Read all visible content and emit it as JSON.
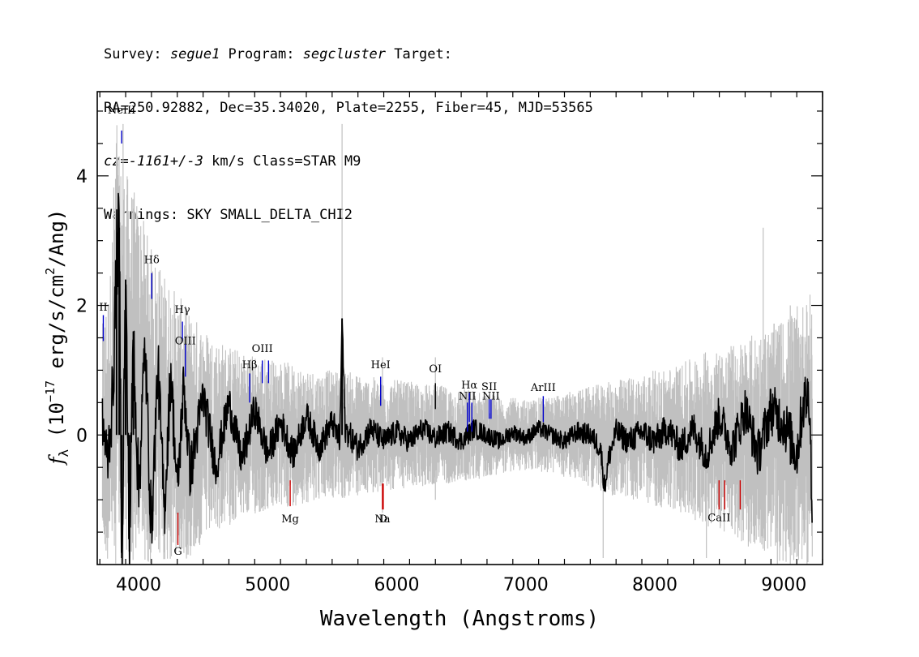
{
  "header": {
    "line1": {
      "survey_label": "Survey: ",
      "survey": "segue1",
      "program_label": " Program: ",
      "program": "segcluster",
      "target_label": " Target:"
    },
    "line2": "RA=250.92882, Dec=35.34020, Plate=2255, Fiber=45, MJD=53565",
    "line3": {
      "cz_label": "cz=",
      "cz_value": "-1161+/-3",
      "cz_rest": " km/s Class=STAR M9"
    },
    "line4": "Warnings: SKY SMALL_DELTA_CHI2"
  },
  "chart_data": {
    "type": "line",
    "title": "",
    "xlabel": "Wavelength (Angstroms)",
    "ylabel": "f_λ (10^-17 erg/s/cm^2/Ang)",
    "xlim": [
      3680,
      9300
    ],
    "ylim": [
      -2.0,
      5.3
    ],
    "x_ticks": [
      4000,
      5000,
      6000,
      7000,
      8000,
      9000
    ],
    "x_tick_labels": [
      "4000",
      "5000",
      "6000",
      "7000",
      "8000",
      "9000"
    ],
    "y_ticks": [
      0,
      2,
      4
    ],
    "y_tick_labels": [
      "0",
      "2",
      "4"
    ],
    "grid": false,
    "series": [
      {
        "name": "",
        "role": "flux-error-envelope",
        "color": "#c0c0c0",
        "x": [
          3720,
          3780,
          3830,
          3850,
          3900,
          4000,
          4100,
          4200,
          4300,
          4400,
          4500,
          4600,
          4800,
          5000,
          5200,
          5400,
          5600,
          5800,
          6000,
          6200,
          6400,
          6600,
          6800,
          7000,
          7200,
          7400,
          7600,
          7800,
          8000,
          8200,
          8400,
          8600,
          8800,
          9000,
          9220
        ],
        "upper": [
          1.7,
          2.5,
          5.1,
          4.3,
          4.1,
          3.6,
          2.9,
          2.5,
          2.2,
          1.9,
          1.7,
          1.5,
          1.3,
          1.2,
          1.1,
          1.0,
          1.0,
          0.9,
          0.85,
          0.8,
          0.75,
          0.7,
          0.6,
          0.55,
          0.6,
          0.7,
          0.8,
          0.9,
          1.0,
          1.1,
          1.3,
          1.4,
          1.6,
          1.8,
          2.2
        ],
        "lower": [
          -1.9,
          -2.0,
          -2.0,
          -2.0,
          -2.0,
          -2.0,
          -2.0,
          -2.0,
          -2.0,
          -1.9,
          -1.7,
          -1.5,
          -1.3,
          -1.2,
          -1.1,
          -1.0,
          -1.0,
          -0.9,
          -0.85,
          -0.8,
          -0.75,
          -0.7,
          -0.6,
          -0.55,
          -0.6,
          -0.7,
          -0.9,
          -1.0,
          -1.1,
          -1.2,
          -1.4,
          -1.6,
          -1.8,
          -2.0,
          -2.0
        ],
        "spikes": [
          {
            "x": 3880,
            "y1": -2.0,
            "y2": 4.8
          },
          {
            "x": 5577,
            "y1": -0.6,
            "y2": 4.8
          },
          {
            "x": 5890,
            "y1": -1.2,
            "y2": 1.2
          },
          {
            "x": 6300,
            "y1": -1.0,
            "y2": 1.2
          },
          {
            "x": 7600,
            "y1": -1.9,
            "y2": 0.6
          },
          {
            "x": 8400,
            "y1": -1.9,
            "y2": 1.0
          },
          {
            "x": 8840,
            "y1": -1.0,
            "y2": 3.2
          },
          {
            "x": 8950,
            "y1": -2.0,
            "y2": 1.6
          },
          {
            "x": 9050,
            "y1": -2.0,
            "y2": 2.0
          },
          {
            "x": 9180,
            "y1": -2.0,
            "y2": 1.9
          }
        ]
      },
      {
        "name": "",
        "role": "flux",
        "color": "#000000",
        "x": [
          3720,
          3760,
          3800,
          3830,
          3850,
          3870,
          3900,
          3930,
          3960,
          4000,
          4050,
          4100,
          4150,
          4200,
          4250,
          4300,
          4350,
          4400,
          4500,
          4600,
          4700,
          4800,
          4900,
          5000,
          5100,
          5200,
          5300,
          5400,
          5500,
          5560,
          5577,
          5600,
          5700,
          5800,
          5900,
          6000,
          6100,
          6200,
          6300,
          6400,
          6500,
          6600,
          6700,
          6800,
          6900,
          7000,
          7100,
          7200,
          7300,
          7400,
          7500,
          7580,
          7610,
          7650,
          7700,
          7800,
          7900,
          8000,
          8100,
          8200,
          8300,
          8400,
          8500,
          8600,
          8700,
          8800,
          8900,
          9000,
          9100,
          9150,
          9200,
          9220
        ],
        "values": [
          0.2,
          -0.4,
          0.6,
          2.7,
          3.2,
          -1.9,
          2.4,
          -1.8,
          1.6,
          -0.9,
          1.4,
          -1.5,
          1.1,
          -1.2,
          1.0,
          -0.9,
          0.8,
          -0.6,
          0.6,
          -0.5,
          0.5,
          -0.4,
          0.4,
          -0.3,
          0.2,
          -0.3,
          0.3,
          -0.2,
          0.2,
          -0.1,
          1.8,
          0.1,
          -0.2,
          0.1,
          -0.1,
          0.05,
          -0.1,
          0.1,
          -0.05,
          0.05,
          -0.1,
          0.1,
          0.0,
          -0.1,
          0.05,
          -0.05,
          0.1,
          0.0,
          -0.1,
          0.05,
          0.0,
          -0.2,
          -0.8,
          -0.3,
          0.05,
          -0.1,
          0.05,
          -0.1,
          0.1,
          -0.2,
          0.1,
          -0.3,
          0.3,
          -0.2,
          0.4,
          -0.3,
          0.4,
          0.2,
          -0.3,
          0.5,
          0.6,
          -1.3
        ]
      }
    ],
    "annotations": {
      "emission": [
        {
          "label": "NeIII",
          "x": 3869,
          "y_bar": [
            4.7,
            4.5
          ],
          "y_text": 4.96,
          "color": "#0000cc"
        },
        {
          "label": "Hδ",
          "x": 4102,
          "y_bar": [
            2.5,
            2.1
          ],
          "y_text": 2.65,
          "color": "#0000cc"
        },
        {
          "label": "Hγ",
          "x": 4340,
          "y_bar": [
            1.75,
            1.45
          ],
          "y_text": 1.88,
          "color": "#0000cc"
        },
        {
          "label": "OIII",
          "x": 4363,
          "y_bar": [
            1.4,
            0.9
          ],
          "y_text": 1.4,
          "color": "#0000cc"
        },
        {
          "label": "Hβ",
          "x": 4861,
          "y_bar": [
            0.95,
            0.5
          ],
          "y_text": 1.03,
          "color": "#0000cc"
        },
        {
          "label": "OIII",
          "x": 4959,
          "y_bar": [
            1.15,
            0.8
          ],
          "y_text": 1.28,
          "color": "#0000cc"
        },
        {
          "label": "",
          "x": 5007,
          "y_bar": [
            1.15,
            0.8
          ],
          "y_text": null,
          "color": "#0000cc"
        },
        {
          "label": "HeI",
          "x": 5876,
          "y_bar": [
            0.9,
            0.45
          ],
          "y_text": 1.03,
          "color": "#0000cc"
        },
        {
          "label": "OI",
          "x": 6300,
          "y_bar": [
            0.8,
            0.4
          ],
          "y_text": 0.97,
          "color": "#000000"
        },
        {
          "label": "NII",
          "x": 6548,
          "y_bar": [
            0.5,
            0.05
          ],
          "y_text": 0.55,
          "color": "#0000cc"
        },
        {
          "label": "Hα",
          "x": 6563,
          "y_bar": [
            0.65,
            0.2
          ],
          "y_text": 0.72,
          "color": "#0000cc"
        },
        {
          "label": "NII",
          "x": 6583,
          "y_bar": [
            0.5,
            0.05
          ],
          "y_text": null,
          "color": "#0000cc"
        },
        {
          "label": "SII",
          "x": 6717,
          "y_bar": [
            0.55,
            0.25
          ],
          "y_text": 0.69,
          "color": "#0000cc"
        },
        {
          "label": "NII",
          "x": 6731,
          "y_bar": [
            0.55,
            0.25
          ],
          "y_text": 0.55,
          "color": "#0000cc"
        },
        {
          "label": "ArIII",
          "x": 7136,
          "y_bar": [
            0.6,
            0.2
          ],
          "y_text": 0.68,
          "color": "#0000cc"
        },
        {
          "label": "II",
          "x": 3727,
          "y_bar": [
            1.85,
            1.45
          ],
          "y_text": 1.92,
          "color": "#0000cc"
        }
      ],
      "absorption": [
        {
          "label": "G",
          "x": 4305,
          "y_bar": [
            -1.2,
            -1.7
          ],
          "y_text": -1.85,
          "color": "#cc0000"
        },
        {
          "label": "Mg",
          "x": 5175,
          "y_bar": [
            -0.7,
            -1.1
          ],
          "y_text": -1.35,
          "color": "#cc0000"
        },
        {
          "label": "Na",
          "x": 5890,
          "y_bar": [
            -0.75,
            -1.15
          ],
          "y_text": -1.35,
          "color": "#cc0000"
        },
        {
          "label": "D",
          "x": 5896,
          "y_bar": [
            -0.75,
            -1.15
          ],
          "y_text": -1.35,
          "color": "#cc0000"
        },
        {
          "label": "CaII",
          "x": 8498,
          "y_bar": [
            -0.7,
            -1.15
          ],
          "y_text": -1.33,
          "color": "#cc0000"
        },
        {
          "label": "",
          "x": 8542,
          "y_bar": [
            -0.7,
            -1.15
          ],
          "y_text": null,
          "color": "#cc0000"
        },
        {
          "label": "",
          "x": 8662,
          "y_bar": [
            -0.7,
            -1.15
          ],
          "y_text": null,
          "color": "#cc0000"
        }
      ]
    }
  }
}
